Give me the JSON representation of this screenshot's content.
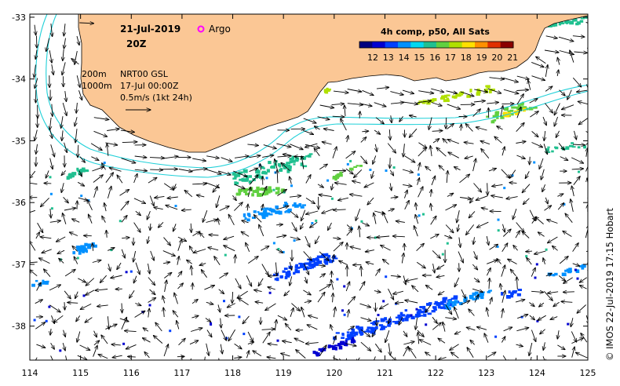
{
  "header": {
    "date": "21-Jul-2019",
    "hour": "20Z",
    "argo_label": "Argo"
  },
  "legend": {
    "lines": [
      "200m",
      "1000m"
    ],
    "product": "NRT00 GSL",
    "analysis_time": "17-Jul 00:00Z",
    "scale": "0.5m/s (1kt 24h)"
  },
  "colorbar": {
    "title": "4h comp, p50, All Sats",
    "ticks": [
      "12",
      "13",
      "14",
      "15",
      "16",
      "17",
      "18",
      "19",
      "20",
      "21"
    ],
    "colors": [
      "#00007f",
      "#0000d0",
      "#0040ff",
      "#0090ff",
      "#00d8f0",
      "#20c090",
      "#60d040",
      "#b0e000",
      "#ffe000",
      "#ff9000",
      "#e03000",
      "#8a0000"
    ]
  },
  "credit": "© IMOS 22-Jul-2019 17:15 Hobart",
  "axes": {
    "x_ticks": [
      "114",
      "115",
      "116",
      "117",
      "118",
      "119",
      "120",
      "121",
      "122",
      "123",
      "124",
      "125"
    ],
    "y_ticks": [
      "-33",
      "-34",
      "-35",
      "-36",
      "-37",
      "-38"
    ],
    "x_range": [
      114,
      125
    ],
    "y_range": [
      -38.55,
      -32.95
    ]
  },
  "colors": {
    "land": "#fbc795",
    "isobath": "#20d0d8"
  }
}
